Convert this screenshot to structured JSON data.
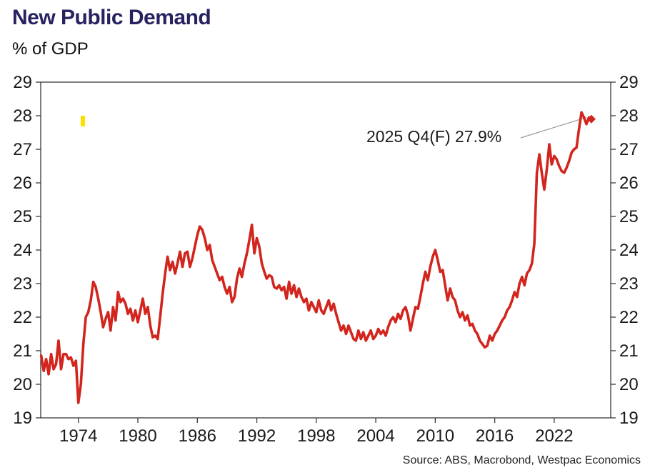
{
  "header": {
    "title": "New Public Demand",
    "subtitle": "% of GDP"
  },
  "footer": {
    "source": "Source: ABS, Macrobond, Westpac Economics"
  },
  "palette": {
    "line_red": "#d2251d",
    "title_navy": "#272361",
    "highlight_yellow": "#ffdf00",
    "leader_gray": "#999999",
    "axis_dark": "#3a3a3a",
    "label_dark": "#1a1a1a"
  },
  "chart_data": {
    "type": "line",
    "title": "New Public Demand",
    "ylabel": "% of GDP",
    "grid": false,
    "frame": true,
    "legend_position": "none",
    "xlim": [
      1970.2,
      2027.7
    ],
    "ylim": [
      19,
      29
    ],
    "xticks": [
      1974,
      1980,
      1986,
      1992,
      1998,
      2004,
      2010,
      2016,
      2022
    ],
    "yticks": [
      19,
      20,
      21,
      22,
      23,
      24,
      25,
      26,
      27,
      28,
      29
    ],
    "x_start": 1970.25,
    "x_step": 0.25,
    "annotation": {
      "label": "2025 Q4(F) 27.9%",
      "target_x": 2025.25,
      "target_y": 27.95,
      "final_value": 27.9
    },
    "series": [
      {
        "name": "New public demand (% of GDP, quarterly, 2025 Q4 forecast)",
        "color": "#d2251d",
        "end_marker": "diamond",
        "values": [
          20.85,
          20.4,
          20.75,
          20.3,
          20.9,
          20.45,
          20.6,
          21.3,
          20.45,
          20.9,
          20.9,
          20.75,
          20.8,
          20.55,
          20.7,
          19.45,
          20.0,
          21.2,
          22.0,
          22.15,
          22.5,
          23.05,
          22.9,
          22.55,
          22.15,
          21.7,
          21.95,
          22.15,
          21.6,
          22.3,
          21.9,
          22.75,
          22.45,
          22.55,
          22.4,
          22.1,
          22.25,
          21.9,
          22.2,
          21.85,
          22.2,
          22.55,
          22.1,
          22.3,
          21.75,
          21.4,
          21.45,
          21.35,
          22.0,
          22.7,
          23.3,
          23.8,
          23.4,
          23.65,
          23.3,
          23.6,
          23.95,
          23.5,
          23.9,
          23.95,
          23.5,
          23.75,
          24.1,
          24.45,
          24.7,
          24.6,
          24.35,
          24.0,
          24.15,
          23.7,
          23.5,
          23.3,
          23.1,
          23.2,
          22.9,
          22.7,
          22.9,
          22.45,
          22.6,
          23.15,
          23.45,
          23.2,
          23.6,
          23.9,
          24.3,
          24.75,
          23.9,
          24.35,
          24.1,
          23.6,
          23.35,
          23.15,
          23.25,
          23.2,
          22.9,
          22.85,
          22.95,
          22.8,
          22.9,
          22.55,
          23.05,
          22.7,
          22.95,
          22.6,
          22.85,
          22.6,
          22.45,
          22.55,
          22.2,
          22.45,
          22.3,
          22.15,
          22.5,
          22.2,
          22.1,
          22.3,
          22.5,
          22.2,
          22.4,
          22.1,
          21.85,
          21.6,
          21.75,
          21.5,
          21.75,
          21.55,
          21.35,
          21.3,
          21.6,
          21.35,
          21.55,
          21.3,
          21.45,
          21.6,
          21.35,
          21.45,
          21.65,
          21.5,
          21.6,
          21.45,
          21.7,
          21.9,
          22.0,
          21.85,
          22.1,
          21.95,
          22.2,
          22.3,
          22.05,
          21.6,
          21.95,
          22.3,
          22.25,
          22.6,
          23.0,
          23.35,
          23.1,
          23.5,
          23.8,
          24.0,
          23.7,
          23.35,
          23.4,
          22.95,
          22.5,
          22.85,
          22.6,
          22.5,
          22.2,
          22.0,
          22.15,
          21.9,
          22.05,
          21.75,
          21.8,
          21.6,
          21.5,
          21.3,
          21.2,
          21.1,
          21.15,
          21.45,
          21.3,
          21.5,
          21.6,
          21.75,
          21.9,
          22.0,
          22.2,
          22.3,
          22.5,
          22.75,
          22.6,
          23.0,
          23.2,
          22.95,
          23.3,
          23.4,
          23.6,
          24.2,
          26.3,
          26.85,
          26.3,
          25.8,
          26.4,
          27.15,
          26.55,
          26.8,
          26.7,
          26.5,
          26.35,
          26.3,
          26.45,
          26.65,
          26.9,
          27.0,
          27.05,
          27.6,
          28.1,
          27.95,
          27.75,
          27.95,
          27.9
        ]
      }
    ]
  }
}
